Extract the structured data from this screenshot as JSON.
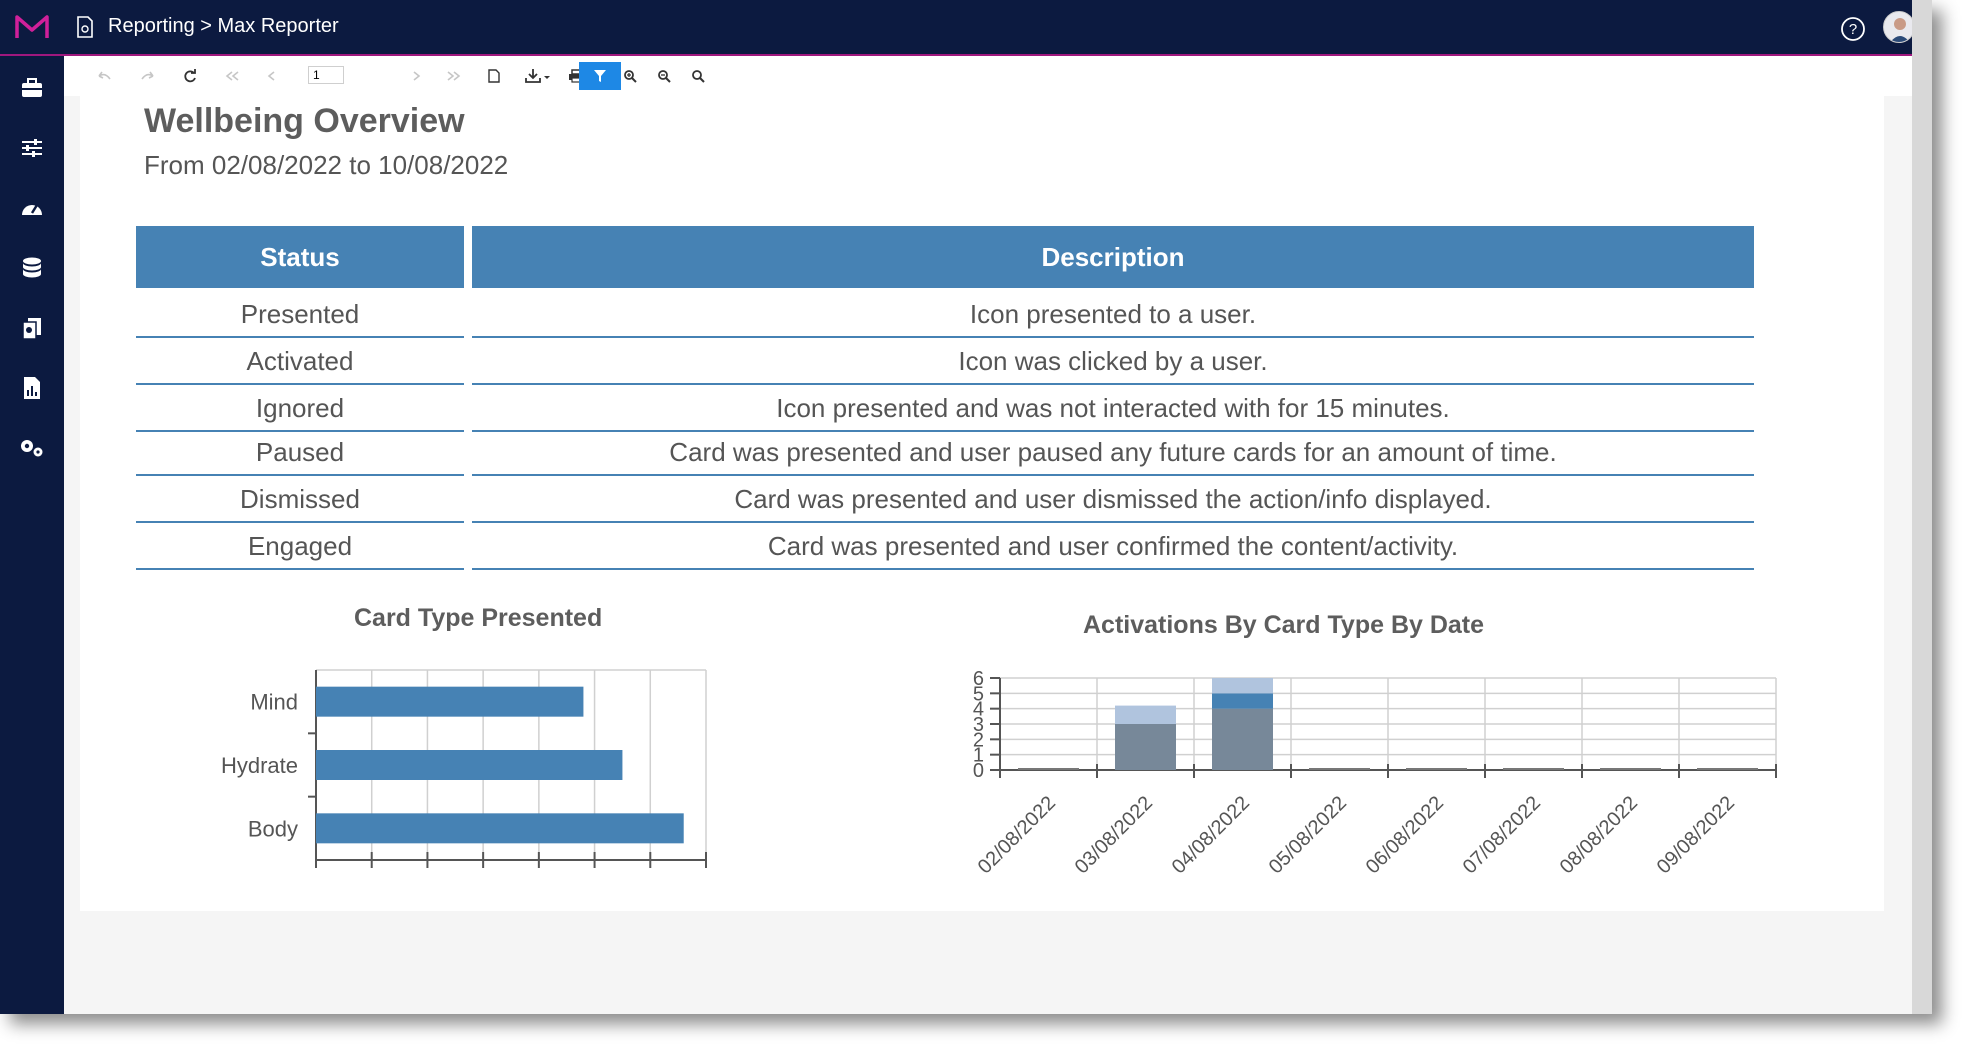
{
  "header": {
    "breadcrumb": "Reporting > Max Reporter"
  },
  "icons": {
    "logo": "m-logo-icon",
    "page": "document-icon",
    "help": "help-circle-icon",
    "avatar": "user-avatar"
  },
  "sidebar": {
    "items": [
      {
        "name": "toolbox-icon"
      },
      {
        "name": "sliders-icon"
      },
      {
        "name": "dashboard-gauge-icon"
      },
      {
        "name": "database-icon"
      },
      {
        "name": "documents-icon"
      },
      {
        "name": "report-chart-icon"
      },
      {
        "name": "settings-gears-icon"
      }
    ]
  },
  "toolbar": {
    "page_number": "1",
    "buttons": [
      "back",
      "forward",
      "refresh",
      "first-page",
      "previous-page",
      "next-page",
      "last-page",
      "new-page",
      "export",
      "print",
      "document-map",
      "parameters",
      "zoom-in",
      "zoom-out",
      "search"
    ]
  },
  "report": {
    "title": "Wellbeing Overview",
    "subtitle": "From 02/08/2022 to 10/08/2022",
    "table": {
      "headers": [
        "Status",
        "Description"
      ],
      "rows": [
        [
          "Presented",
          "Icon presented to a user."
        ],
        [
          "Activated",
          "Icon was clicked by a user."
        ],
        [
          "Ignored",
          "Icon presented and was not interacted with for 15 minutes."
        ],
        [
          "Paused",
          "Card was presented and user paused any future cards for an amount of time."
        ],
        [
          "Dismissed",
          "Card was presented and user dismissed the action/info displayed."
        ],
        [
          "Engaged",
          "Card was presented and user confirmed the content/activity."
        ]
      ]
    }
  },
  "colors": {
    "brand_navy": "#0c1a40",
    "accent_magenta": "#a0187e",
    "table_header": "#4682b4",
    "bar_primary": "#4682b4",
    "bar_dark": "#778899",
    "bar_light": "#b0c4de",
    "toolbar_active": "#1e88e5"
  },
  "chart_data": [
    {
      "type": "bar",
      "orientation": "horizontal",
      "title": "Card Type Presented",
      "categories": [
        "Mind",
        "Hydrate",
        "Body"
      ],
      "values": [
        48,
        55,
        66
      ],
      "xlim": [
        0,
        70
      ],
      "grid": true
    },
    {
      "type": "bar",
      "stacked": true,
      "title": "Activations By Card Type By Date",
      "categories": [
        "02/08/2022",
        "03/08/2022",
        "04/08/2022",
        "05/08/2022",
        "06/08/2022",
        "07/08/2022",
        "08/08/2022",
        "09/08/2022"
      ],
      "series": [
        {
          "color": "#778899",
          "values": [
            0,
            3,
            4,
            0,
            0,
            0,
            0,
            0
          ]
        },
        {
          "color": "#4682b4",
          "values": [
            0,
            0,
            1,
            0,
            0,
            0,
            0,
            0
          ]
        },
        {
          "color": "#b0c4de",
          "values": [
            0,
            1.2,
            1,
            0,
            0,
            0,
            0,
            0
          ]
        }
      ],
      "yticks": [
        "0",
        "1",
        "2",
        "3",
        "4",
        "5",
        "6"
      ],
      "ylim": [
        0,
        6
      ],
      "grid": true
    }
  ]
}
